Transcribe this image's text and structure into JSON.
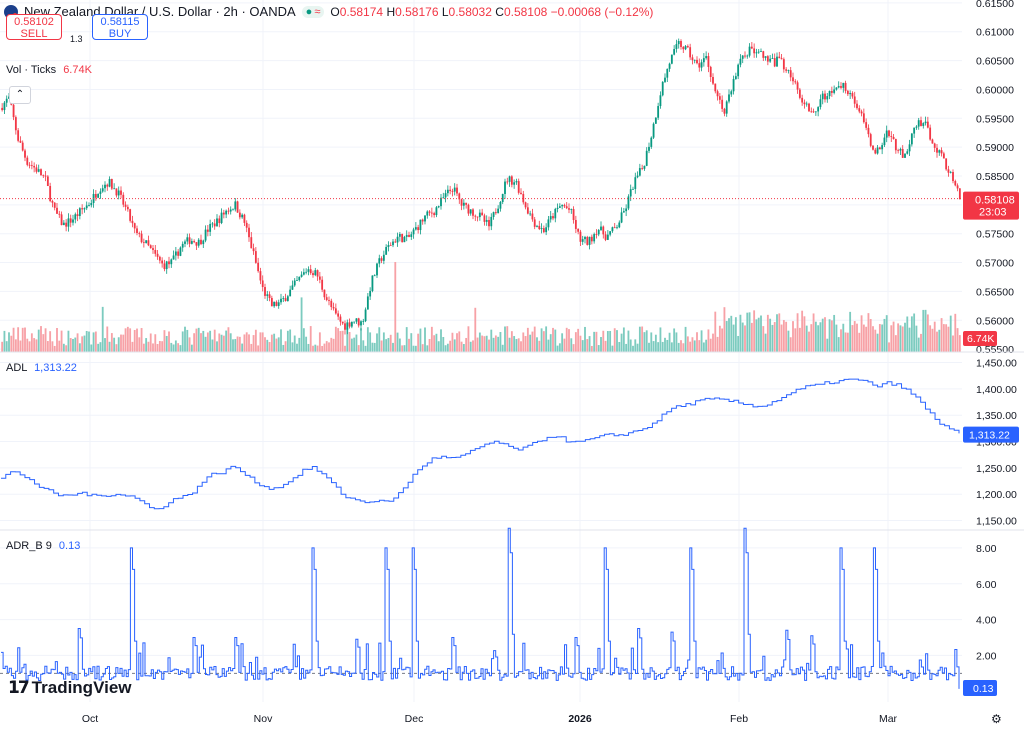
{
  "header": {
    "title": "New Zealand Dollar / U.S. Dollar · 2h · OANDA",
    "ohlc": {
      "o_label": "O",
      "o": "0.58174",
      "h_label": "H",
      "h": "0.58176",
      "l_label": "L",
      "l": "0.58032",
      "c_label": "C",
      "c": "0.58108",
      "change": "−0.00068 (−0.12%)"
    }
  },
  "trade": {
    "sell_price": "0.58102",
    "sell_label": "SELL",
    "spread": "1.3",
    "buy_price": "0.58115",
    "buy_label": "BUY"
  },
  "panes": {
    "vol": {
      "label": "Vol · Ticks",
      "value": "6.74K"
    },
    "adl": {
      "label": "ADL",
      "value": "1,313.22"
    },
    "adr": {
      "label": "ADR_B 9",
      "value": "0.13"
    }
  },
  "logo": {
    "text": "TradingView"
  },
  "colors": {
    "up": "#089981",
    "down": "#f23645",
    "line": "#2962ff",
    "vol_up": "#7ccbbf",
    "vol_down": "#f7a1a6"
  },
  "chart_data": [
    {
      "type": "candlestick",
      "title": "New Zealand Dollar / U.S. Dollar · 2h · OANDA",
      "x_ticks": [
        "Oct",
        "Nov",
        "Dec",
        "2026",
        "Feb",
        "Mar"
      ],
      "y_ticks": [
        "0.61500",
        "0.61000",
        "0.60500",
        "0.60000",
        "0.59500",
        "0.59000",
        "0.58500",
        "0.58000",
        "0.57500",
        "0.57000",
        "0.56500",
        "0.56000",
        "0.55500"
      ],
      "ylim": [
        0.5545,
        0.6155
      ],
      "last_price": "0.58108",
      "countdown": "23:03",
      "close_path": [
        0.5968,
        0.5985,
        0.5915,
        0.5875,
        0.5862,
        0.5845,
        0.579,
        0.5765,
        0.5775,
        0.579,
        0.5805,
        0.583,
        0.584,
        0.5822,
        0.579,
        0.575,
        0.5735,
        0.5715,
        0.5695,
        0.57,
        0.5728,
        0.574,
        0.5735,
        0.5758,
        0.5772,
        0.579,
        0.58,
        0.577,
        0.5715,
        0.5655,
        0.5625,
        0.563,
        0.565,
        0.567,
        0.569,
        0.568,
        0.564,
        0.561,
        0.559,
        0.56,
        0.5595,
        0.5665,
        0.5705,
        0.573,
        0.5745,
        0.574,
        0.576,
        0.578,
        0.579,
        0.5812,
        0.583,
        0.58,
        0.579,
        0.578,
        0.5762,
        0.58,
        0.5845,
        0.584,
        0.58,
        0.577,
        0.5755,
        0.578,
        0.58,
        0.579,
        0.574,
        0.5735,
        0.576,
        0.5745,
        0.576,
        0.579,
        0.5838,
        0.5865,
        0.5925,
        0.6,
        0.605,
        0.608,
        0.6065,
        0.604,
        0.6055,
        0.6,
        0.596,
        0.6015,
        0.606,
        0.607,
        0.606,
        0.6045,
        0.605,
        0.6035,
        0.6,
        0.5975,
        0.596,
        0.599,
        0.5995,
        0.6008,
        0.5995,
        0.596,
        0.591,
        0.589,
        0.593,
        0.59,
        0.588,
        0.5935,
        0.5945,
        0.591,
        0.5885,
        0.585,
        0.5811
      ]
    },
    {
      "type": "bar",
      "name": "Vol · Ticks",
      "last_value": "6.74K"
    },
    {
      "type": "line",
      "name": "ADL",
      "y_ticks": [
        "1,450.00",
        "1,400.00",
        "1,350.00",
        "1,300.00",
        "1,250.00",
        "1,200.00",
        "1,150.00"
      ],
      "ylim": [
        1132,
        1470
      ],
      "last_value": "1,313.22",
      "path": [
        1230,
        1243,
        1237,
        1226,
        1210,
        1204,
        1196,
        1199,
        1203,
        1197,
        1197,
        1200,
        1200,
        1195,
        1185,
        1170,
        1177,
        1190,
        1195,
        1205,
        1225,
        1239,
        1242,
        1254,
        1240,
        1225,
        1215,
        1210,
        1219,
        1231,
        1247,
        1250,
        1236,
        1216,
        1196,
        1190,
        1185,
        1188,
        1185,
        1192,
        1215,
        1240,
        1258,
        1270,
        1270,
        1268,
        1275,
        1285,
        1295,
        1300,
        1292,
        1285,
        1288,
        1298,
        1307,
        1312,
        1302,
        1298,
        1302,
        1307,
        1312,
        1312,
        1315,
        1320,
        1327,
        1340,
        1357,
        1367,
        1370,
        1376,
        1380,
        1380,
        1378,
        1374,
        1370,
        1367,
        1370,
        1380,
        1390,
        1398,
        1405,
        1407,
        1412,
        1414,
        1418,
        1416,
        1412,
        1404,
        1412,
        1406,
        1395,
        1378,
        1355,
        1336,
        1325,
        1313
      ]
    },
    {
      "type": "line",
      "name": "ADR_B 9",
      "y_ticks": [
        "8.00",
        "6.00",
        "4.00",
        "2.00"
      ],
      "ylim": [
        -0.6,
        9.0
      ],
      "reference_line": 1.0,
      "last_value": "0.13",
      "spikes": [
        [
          0.08,
          3.5
        ],
        [
          0.135,
          8.0
        ],
        [
          0.325,
          8.0
        ],
        [
          0.4,
          8.0
        ],
        [
          0.43,
          8.0
        ],
        [
          0.53,
          9.1
        ],
        [
          0.63,
          8.0
        ],
        [
          0.72,
          8.0
        ],
        [
          0.775,
          9.1
        ],
        [
          0.875,
          8.0
        ],
        [
          0.91,
          8.0
        ],
        [
          0.2,
          3.0
        ],
        [
          0.47,
          3.0
        ],
        [
          0.6,
          3.0
        ],
        [
          0.665,
          3.5
        ],
        [
          0.82,
          3.4
        ],
        [
          0.245,
          3.0
        ],
        [
          0.37,
          2.9
        ],
        [
          0.7,
          3.3
        ],
        [
          0.845,
          3.1
        ]
      ]
    }
  ]
}
